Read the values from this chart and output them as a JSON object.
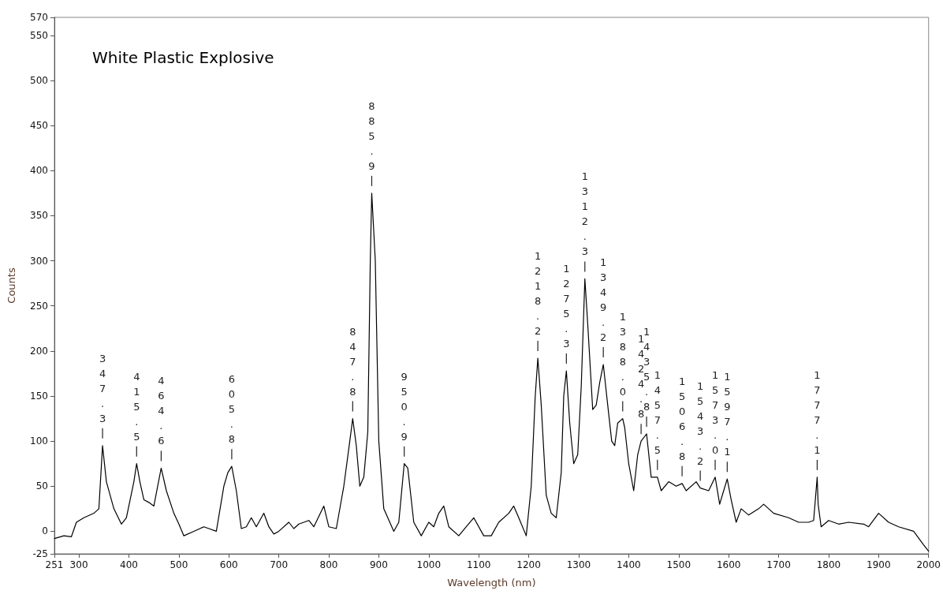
{
  "chart_data": {
    "type": "line",
    "title": "White Plastic Explosive",
    "xlabel": "Wavelength (nm)",
    "ylabel": "Counts",
    "xlim": [
      251,
      2000
    ],
    "xticks": [
      251,
      300,
      400,
      500,
      600,
      700,
      800,
      900,
      1000,
      1100,
      1200,
      1300,
      1400,
      1500,
      1600,
      1700,
      1800,
      1900,
      2000
    ],
    "ylim": [
      -25,
      570
    ],
    "yticks": [
      -25,
      0,
      50,
      100,
      150,
      200,
      250,
      300,
      350,
      400,
      450,
      500,
      550,
      570
    ],
    "grid": false,
    "marker": "none",
    "line_style": "solid",
    "series": [
      {
        "color": "#000000",
        "x": [
          251,
          270,
          285,
          295,
          310,
          330,
          340,
          347.3,
          355,
          370,
          385,
          395,
          410,
          415.5,
          422,
          430,
          440,
          450,
          464.6,
          475,
          490,
          500,
          510,
          530,
          550,
          560,
          575,
          590,
          598,
          605.8,
          615,
          625,
          635,
          645,
          655,
          670,
          680,
          690,
          700,
          720,
          730,
          740,
          760,
          770,
          790,
          800,
          815,
          830,
          842,
          847.8,
          855,
          862,
          870,
          878,
          883,
          885.9,
          893,
          900,
          910,
          930,
          940,
          950.9,
          958,
          970,
          985,
          1000,
          1010,
          1020,
          1030,
          1040,
          1060,
          1075,
          1090,
          1110,
          1125,
          1140,
          1160,
          1170,
          1180,
          1195,
          1205,
          1213,
          1218.2,
          1225,
          1235,
          1245,
          1255,
          1265,
          1270,
          1275.3,
          1282,
          1290,
          1298,
          1305,
          1312.3,
          1318,
          1328,
          1335,
          1342,
          1349.2,
          1358,
          1366,
          1372,
          1378,
          1388.0,
          1392,
          1400,
          1410,
          1418,
          1424.8,
          1435.8,
          1445,
          1457.5,
          1465,
          1480,
          1495,
          1506.8,
          1515,
          1535,
          1543.2,
          1560,
          1573.0,
          1582,
          1590,
          1597.1,
          1605,
          1615,
          1625,
          1640,
          1660,
          1670,
          1690,
          1720,
          1740,
          1760,
          1770,
          1777.1,
          1779,
          1785,
          1800,
          1820,
          1840,
          1870,
          1880,
          1900,
          1920,
          1940,
          1970,
          1990,
          2000
        ],
        "values": [
          -8,
          -5,
          -6,
          10,
          15,
          20,
          25,
          95,
          55,
          25,
          8,
          15,
          55,
          75,
          55,
          35,
          32,
          28,
          70,
          45,
          20,
          8,
          -5,
          0,
          5,
          3,
          0,
          50,
          65,
          72,
          45,
          3,
          5,
          15,
          5,
          20,
          5,
          -3,
          0,
          10,
          3,
          8,
          12,
          5,
          28,
          5,
          3,
          50,
          100,
          125,
          95,
          50,
          60,
          110,
          300,
          375,
          300,
          100,
          25,
          0,
          10,
          75,
          70,
          10,
          -5,
          10,
          5,
          20,
          28,
          5,
          -5,
          5,
          15,
          -5,
          -5,
          10,
          20,
          28,
          15,
          -5,
          50,
          150,
          192,
          140,
          40,
          20,
          15,
          65,
          150,
          178,
          120,
          75,
          85,
          160,
          280,
          230,
          135,
          140,
          165,
          185,
          140,
          100,
          95,
          120,
          125,
          115,
          75,
          45,
          85,
          100,
          108,
          60,
          60,
          45,
          55,
          50,
          53,
          45,
          55,
          48,
          45,
          60,
          30,
          45,
          58,
          35,
          10,
          25,
          18,
          25,
          30,
          20,
          15,
          10,
          10,
          12,
          60,
          30,
          5,
          12,
          8,
          10,
          8,
          5,
          20,
          10,
          5,
          0,
          -15,
          -22
        ]
      }
    ],
    "annotations": [
      {
        "text": "347.3",
        "x": 347.3,
        "y": 95
      },
      {
        "text": "415.5",
        "x": 415.5,
        "y": 75
      },
      {
        "text": "464.6",
        "x": 464.6,
        "y": 70
      },
      {
        "text": "605.8",
        "x": 605.8,
        "y": 72
      },
      {
        "text": "847.8",
        "x": 847.8,
        "y": 125
      },
      {
        "text": "885.9",
        "x": 885.9,
        "y": 375
      },
      {
        "text": "950.9",
        "x": 950.9,
        "y": 75
      },
      {
        "text": "1218.2",
        "x": 1218.2,
        "y": 192
      },
      {
        "text": "1275.3",
        "x": 1275.3,
        "y": 178
      },
      {
        "text": "1312.3",
        "x": 1312.3,
        "y": 280
      },
      {
        "text": "1349.2",
        "x": 1349.2,
        "y": 185
      },
      {
        "text": "1388.0",
        "x": 1388.0,
        "y": 125
      },
      {
        "text": "1424.8",
        "x": 1424.8,
        "y": 100
      },
      {
        "text": "1435.8",
        "x": 1435.8,
        "y": 108
      },
      {
        "text": "1457.5",
        "x": 1457.5,
        "y": 60
      },
      {
        "text": "1506.8",
        "x": 1506.8,
        "y": 53
      },
      {
        "text": "1543.2",
        "x": 1543.2,
        "y": 48
      },
      {
        "text": "1573.0",
        "x": 1573.0,
        "y": 60
      },
      {
        "text": "1597.1",
        "x": 1597.1,
        "y": 58
      },
      {
        "text": "1777.1",
        "x": 1777.1,
        "y": 60
      }
    ]
  }
}
